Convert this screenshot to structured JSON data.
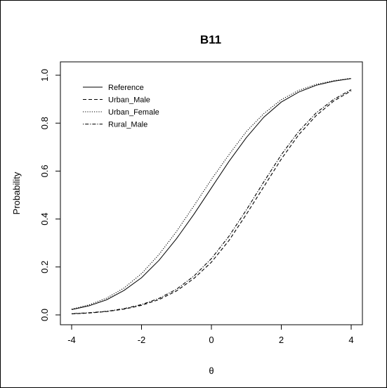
{
  "chart_data": {
    "type": "line",
    "title": "B11",
    "xlabel": "θ",
    "ylabel": "Probability",
    "xlim": [
      -4,
      4
    ],
    "ylim": [
      0,
      1
    ],
    "xticks": [
      -4,
      -2,
      0,
      2,
      4
    ],
    "yticks": [
      0.0,
      0.2,
      0.4,
      0.6,
      0.8,
      1.0
    ],
    "xtick_labels": [
      "-4",
      "-2",
      "0",
      "2",
      "4"
    ],
    "ytick_labels": [
      "0.0",
      "0.2",
      "0.4",
      "0.6",
      "0.8",
      "1.0"
    ],
    "grid": false,
    "legend": "top-left",
    "x": [
      -4,
      -3.5,
      -3,
      -2.5,
      -2,
      -1.5,
      -1,
      -0.5,
      0,
      0.5,
      1,
      1.5,
      2,
      2.5,
      3,
      3.5,
      4
    ],
    "series": [
      {
        "name": "Reference",
        "dash": "solid",
        "values": [
          0.022,
          0.038,
          0.063,
          0.102,
          0.155,
          0.228,
          0.318,
          0.42,
          0.53,
          0.64,
          0.74,
          0.825,
          0.888,
          0.93,
          0.958,
          0.975,
          0.986
        ]
      },
      {
        "name": "Urban_Male",
        "dash": "dashed",
        "values": [
          0.004,
          0.008,
          0.014,
          0.024,
          0.04,
          0.064,
          0.1,
          0.152,
          0.22,
          0.31,
          0.42,
          0.535,
          0.65,
          0.752,
          0.832,
          0.892,
          0.935
        ]
      },
      {
        "name": "Urban_Female",
        "dash": "dotted",
        "values": [
          0.024,
          0.042,
          0.07,
          0.112,
          0.172,
          0.252,
          0.348,
          0.455,
          0.565,
          0.668,
          0.765,
          0.84,
          0.898,
          0.937,
          0.962,
          0.977,
          0.987
        ]
      },
      {
        "name": "Rural_Male",
        "dash": "dashdot",
        "values": [
          0.005,
          0.009,
          0.015,
          0.026,
          0.043,
          0.069,
          0.107,
          0.162,
          0.235,
          0.328,
          0.438,
          0.555,
          0.668,
          0.766,
          0.843,
          0.899,
          0.94
        ]
      }
    ]
  }
}
